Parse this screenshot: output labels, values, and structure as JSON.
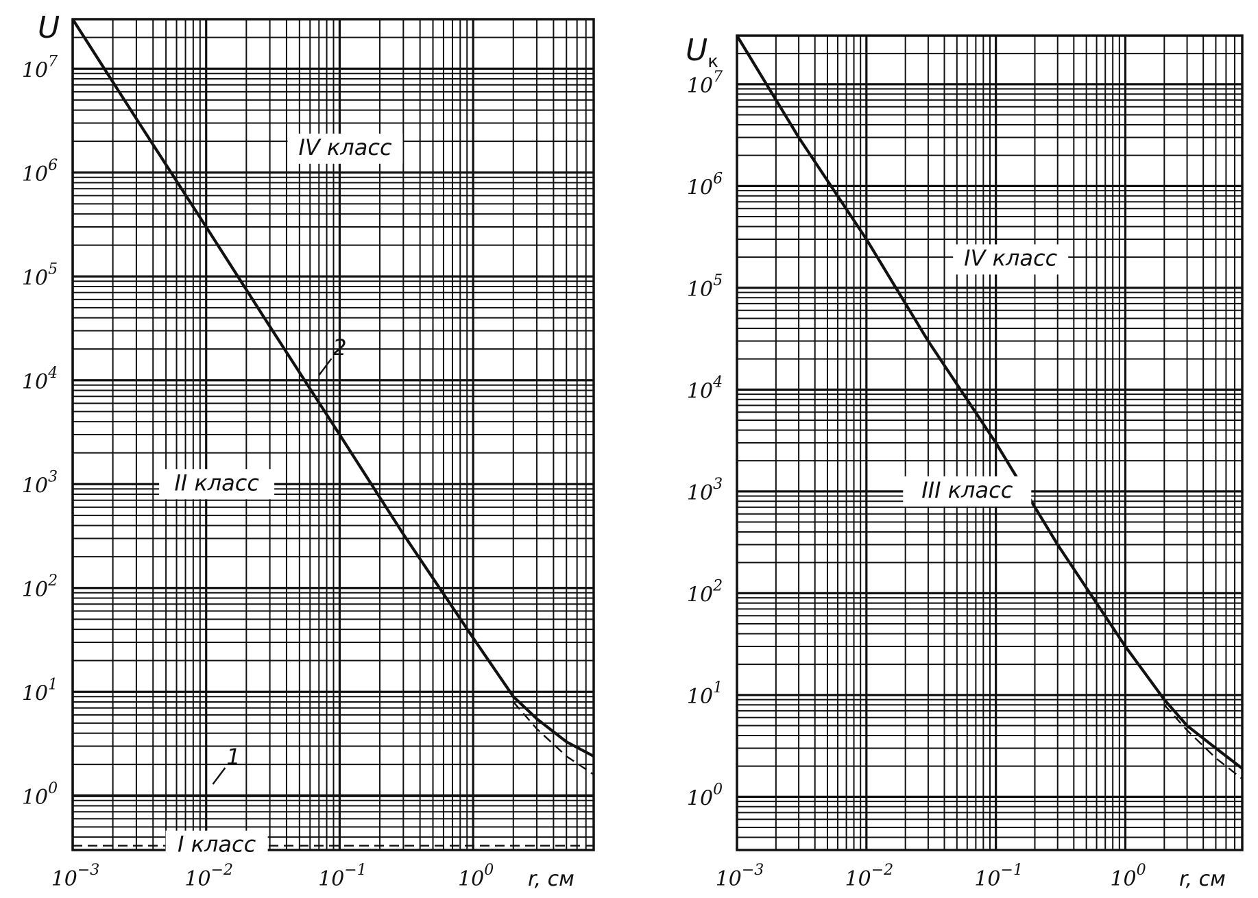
{
  "chart_data": [
    {
      "type": "line",
      "ylabel": "U",
      "xlabel": "r, см",
      "x_scale": "log",
      "y_scale": "log",
      "xlim": [
        0.001,
        8
      ],
      "ylim": [
        0.3,
        30000000
      ],
      "x_tick_labels": [
        {
          "base": "10",
          "exp": "−3",
          "value": 0.001
        },
        {
          "base": "10",
          "exp": "−2",
          "value": 0.01
        },
        {
          "base": "10",
          "exp": "−1",
          "value": 0.1
        },
        {
          "base": "10",
          "exp": "0",
          "value": 1
        }
      ],
      "y_tick_labels": [
        {
          "base": "10",
          "exp": "0",
          "value": 1
        },
        {
          "base": "10",
          "exp": "1",
          "value": 10
        },
        {
          "base": "10",
          "exp": "2",
          "value": 100
        },
        {
          "base": "10",
          "exp": "3",
          "value": 1000
        },
        {
          "base": "10",
          "exp": "4",
          "value": 10000
        },
        {
          "base": "10",
          "exp": "5",
          "value": 100000
        },
        {
          "base": "10",
          "exp": "6",
          "value": 1000000
        },
        {
          "base": "10",
          "exp": "7",
          "value": 10000000
        }
      ],
      "grid": true,
      "series": [
        {
          "label": "2",
          "style": "solid",
          "x": [
            0.001,
            0.003,
            0.01,
            0.03,
            0.1,
            0.3,
            1,
            2,
            3,
            5,
            8
          ],
          "y": [
            30000000,
            3300000,
            300000,
            33000,
            3000,
            330,
            33,
            9,
            5.5,
            3.3,
            2.4
          ]
        },
        {
          "style": "dashed",
          "x": [
            2,
            3,
            5,
            8
          ],
          "y": [
            8,
            4.4,
            2.4,
            1.6
          ]
        },
        {
          "label": "1",
          "style": "solid",
          "x": [
            0.001,
            8
          ],
          "y": [
            1,
            1
          ]
        },
        {
          "style": "dashed",
          "x": [
            0.001,
            8
          ],
          "y": [
            0.33,
            0.33
          ]
        }
      ],
      "annotations": [
        {
          "text": "IV класс",
          "x": 0.11,
          "y": 1700000
        },
        {
          "text": "II класс",
          "x": 0.012,
          "y": 1000
        },
        {
          "text": "I класс",
          "x": 0.012,
          "y": 0.33
        },
        {
          "text": "2",
          "x": 0.1,
          "y": 20000
        },
        {
          "text": "1",
          "x": 0.016,
          "y": 2.3
        }
      ]
    },
    {
      "type": "line",
      "ylabel": "U",
      "ylabel_sub": "к",
      "xlabel": "r, см",
      "x_scale": "log",
      "y_scale": "log",
      "xlim": [
        0.001,
        8
      ],
      "ylim": [
        0.3,
        30000000
      ],
      "x_tick_labels": [
        {
          "base": "10",
          "exp": "−3",
          "value": 0.001
        },
        {
          "base": "10",
          "exp": "−2",
          "value": 0.01
        },
        {
          "base": "10",
          "exp": "−1",
          "value": 0.1
        },
        {
          "base": "10",
          "exp": "0",
          "value": 1
        }
      ],
      "y_tick_labels": [
        {
          "base": "10",
          "exp": "0",
          "value": 1
        },
        {
          "base": "10",
          "exp": "1",
          "value": 10
        },
        {
          "base": "10",
          "exp": "2",
          "value": 100
        },
        {
          "base": "10",
          "exp": "3",
          "value": 1000
        },
        {
          "base": "10",
          "exp": "4",
          "value": 10000
        },
        {
          "base": "10",
          "exp": "5",
          "value": 100000
        },
        {
          "base": "10",
          "exp": "6",
          "value": 1000000
        },
        {
          "base": "10",
          "exp": "7",
          "value": 10000000
        }
      ],
      "grid": true,
      "series": [
        {
          "style": "solid",
          "x": [
            0.001,
            0.003,
            0.01,
            0.03,
            0.1,
            0.3,
            1,
            2,
            3,
            5,
            8
          ],
          "y": [
            30000000,
            3000000,
            300000,
            30000,
            3000,
            300,
            30,
            9,
            5,
            3,
            1.9
          ]
        },
        {
          "style": "dashed",
          "x": [
            2,
            3,
            5,
            8
          ],
          "y": [
            8,
            4.5,
            2.4,
            1.5
          ]
        }
      ],
      "annotations": [
        {
          "text": "IV класс",
          "x": 0.13,
          "y": 190000
        },
        {
          "text": "III класс",
          "x": 0.06,
          "y": 1000
        }
      ]
    }
  ]
}
